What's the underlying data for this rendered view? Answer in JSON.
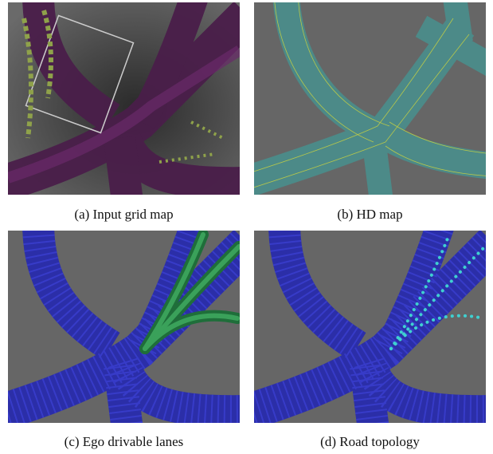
{
  "panels": [
    {
      "caption": "(a) Input grid map"
    },
    {
      "caption": "(b) HD map"
    },
    {
      "caption": "(c) Ego drivable lanes"
    },
    {
      "caption": "(d) Road topology"
    }
  ]
}
